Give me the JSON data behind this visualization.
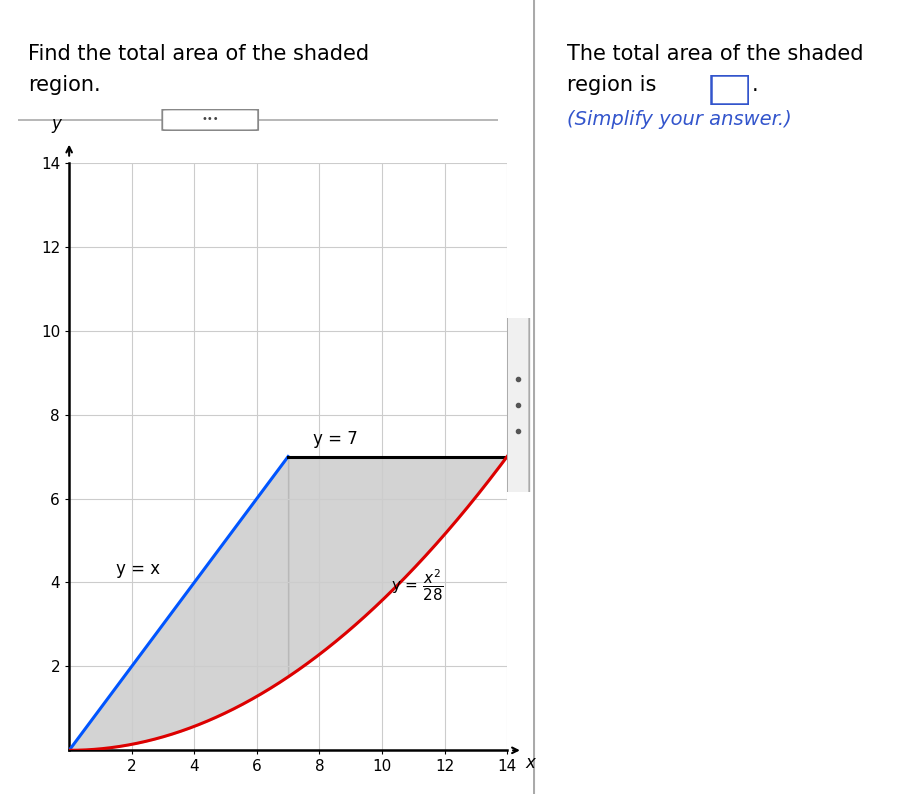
{
  "title_left_line1": "Find the total area of the shaded",
  "title_left_line2": "region.",
  "title_right_line1": "The total area of the shaded",
  "title_right_line2": "region is",
  "title_right_line3": "(Simplify your answer.)",
  "xlim": [
    0,
    14
  ],
  "ylim": [
    0,
    14
  ],
  "xticks": [
    2,
    4,
    6,
    8,
    10,
    12,
    14
  ],
  "yticks": [
    2,
    4,
    6,
    8,
    10,
    12,
    14
  ],
  "blue_line_label": "y = x",
  "black_line_label": "y = 7",
  "red_curve_label": "y = x^2/28",
  "shaded_color": "#b0b0b0",
  "shaded_alpha": 0.55,
  "blue_color": "#0055ff",
  "red_color": "#dd0000",
  "black_color": "#000000",
  "grid_color": "#cccccc",
  "background_color": "#ffffff",
  "fig_width": 9.22,
  "fig_height": 7.94,
  "divider_color": "#aaaaaa",
  "btn_color": "#888888",
  "scroll_track_color": "#e8e8e8",
  "scroll_thumb_color": "#999999",
  "answer_box_color": "#3355cc"
}
